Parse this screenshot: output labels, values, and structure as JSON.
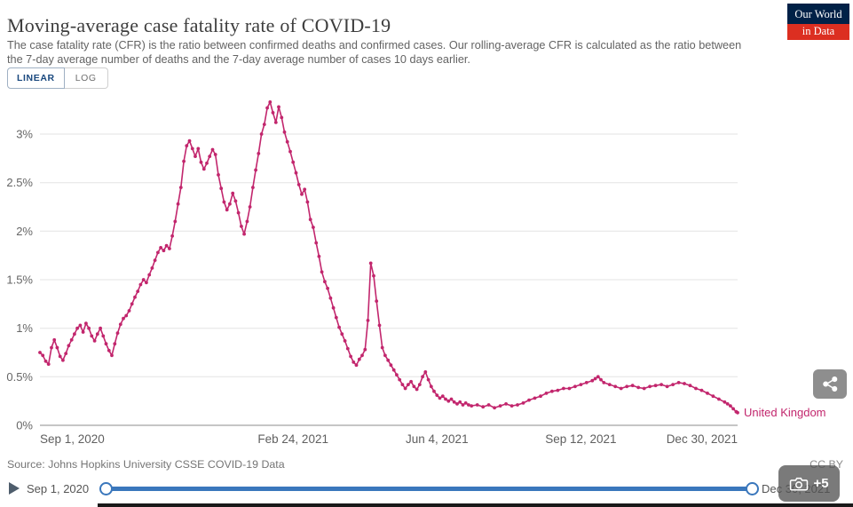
{
  "header": {
    "title": "Moving-average case fatality rate of COVID-19",
    "subtitle": "The case fatality rate (CFR) is the ratio between confirmed deaths and confirmed cases. Our rolling-average CFR is calculated as the ratio between the 7-day average number of deaths and the 7-day average number of cases 10 days earlier."
  },
  "logo": {
    "line1": "Our World",
    "line2": "in Data",
    "bg_color": "#002147",
    "accent_color": "#dc2f21"
  },
  "toggles": {
    "linear_label": "LINEAR",
    "log_label": "LOG",
    "active": "LINEAR"
  },
  "chart_data": {
    "type": "line",
    "title": "Moving-average case fatality rate of COVID-19",
    "x_unit": "days since Sep 1, 2020",
    "x_domain": [
      0,
      485
    ],
    "y_domain": [
      0,
      3
    ],
    "grid": "horizontal-only",
    "x_ticks": [
      {
        "day": 0,
        "label": "Sep 1, 2020",
        "anchor": "start"
      },
      {
        "day": 176,
        "label": "Feb 24, 2021",
        "anchor": "middle"
      },
      {
        "day": 276,
        "label": "Jun 4, 2021",
        "anchor": "middle"
      },
      {
        "day": 376,
        "label": "Sep 12, 2021",
        "anchor": "middle"
      },
      {
        "day": 485,
        "label": "Dec 30, 2021",
        "anchor": "end"
      }
    ],
    "y_ticks": [
      {
        "value": 0,
        "label": "0%"
      },
      {
        "value": 0.5,
        "label": "0.5%"
      },
      {
        "value": 1,
        "label": "1%"
      },
      {
        "value": 1.5,
        "label": "1.5%"
      },
      {
        "value": 2,
        "label": "2%"
      },
      {
        "value": 2.5,
        "label": "2.5%"
      },
      {
        "value": 3,
        "label": "3%"
      }
    ],
    "series": [
      {
        "name": "United Kingdom",
        "color": "#c2266d",
        "points": [
          [
            0,
            0.75
          ],
          [
            2,
            0.72
          ],
          [
            4,
            0.66
          ],
          [
            6,
            0.63
          ],
          [
            8,
            0.8
          ],
          [
            10,
            0.88
          ],
          [
            12,
            0.8
          ],
          [
            14,
            0.71
          ],
          [
            16,
            0.67
          ],
          [
            18,
            0.74
          ],
          [
            20,
            0.82
          ],
          [
            22,
            0.88
          ],
          [
            24,
            0.94
          ],
          [
            26,
            1.0
          ],
          [
            28,
            1.03
          ],
          [
            30,
            0.96
          ],
          [
            32,
            1.05
          ],
          [
            34,
            1.0
          ],
          [
            36,
            0.92
          ],
          [
            38,
            0.87
          ],
          [
            40,
            0.94
          ],
          [
            42,
            1.0
          ],
          [
            44,
            0.92
          ],
          [
            46,
            0.84
          ],
          [
            48,
            0.77
          ],
          [
            50,
            0.72
          ],
          [
            52,
            0.84
          ],
          [
            54,
            0.95
          ],
          [
            56,
            1.04
          ],
          [
            58,
            1.1
          ],
          [
            60,
            1.13
          ],
          [
            62,
            1.18
          ],
          [
            64,
            1.25
          ],
          [
            66,
            1.32
          ],
          [
            68,
            1.38
          ],
          [
            70,
            1.45
          ],
          [
            72,
            1.5
          ],
          [
            74,
            1.47
          ],
          [
            76,
            1.55
          ],
          [
            78,
            1.62
          ],
          [
            80,
            1.7
          ],
          [
            82,
            1.78
          ],
          [
            84,
            1.83
          ],
          [
            86,
            1.8
          ],
          [
            88,
            1.85
          ],
          [
            90,
            1.82
          ],
          [
            92,
            1.95
          ],
          [
            94,
            2.1
          ],
          [
            96,
            2.28
          ],
          [
            98,
            2.45
          ],
          [
            100,
            2.72
          ],
          [
            102,
            2.88
          ],
          [
            104,
            2.93
          ],
          [
            106,
            2.85
          ],
          [
            108,
            2.77
          ],
          [
            110,
            2.85
          ],
          [
            112,
            2.71
          ],
          [
            114,
            2.64
          ],
          [
            116,
            2.7
          ],
          [
            118,
            2.77
          ],
          [
            120,
            2.84
          ],
          [
            122,
            2.79
          ],
          [
            124,
            2.58
          ],
          [
            126,
            2.44
          ],
          [
            128,
            2.3
          ],
          [
            130,
            2.22
          ],
          [
            132,
            2.28
          ],
          [
            134,
            2.39
          ],
          [
            136,
            2.31
          ],
          [
            138,
            2.19
          ],
          [
            140,
            2.05
          ],
          [
            142,
            1.97
          ],
          [
            144,
            2.1
          ],
          [
            146,
            2.25
          ],
          [
            148,
            2.45
          ],
          [
            150,
            2.63
          ],
          [
            152,
            2.8
          ],
          [
            154,
            3.0
          ],
          [
            156,
            3.1
          ],
          [
            158,
            3.27
          ],
          [
            160,
            3.33
          ],
          [
            162,
            3.22
          ],
          [
            164,
            3.12
          ],
          [
            166,
            3.28
          ],
          [
            168,
            3.17
          ],
          [
            170,
            3.02
          ],
          [
            172,
            2.92
          ],
          [
            174,
            2.82
          ],
          [
            176,
            2.71
          ],
          [
            178,
            2.6
          ],
          [
            180,
            2.48
          ],
          [
            182,
            2.38
          ],
          [
            184,
            2.43
          ],
          [
            186,
            2.3
          ],
          [
            188,
            2.12
          ],
          [
            190,
            2.04
          ],
          [
            192,
            1.88
          ],
          [
            194,
            1.74
          ],
          [
            196,
            1.58
          ],
          [
            198,
            1.48
          ],
          [
            200,
            1.41
          ],
          [
            202,
            1.31
          ],
          [
            204,
            1.21
          ],
          [
            206,
            1.11
          ],
          [
            208,
            1.01
          ],
          [
            210,
            0.94
          ],
          [
            212,
            0.87
          ],
          [
            214,
            0.79
          ],
          [
            216,
            0.71
          ],
          [
            218,
            0.65
          ],
          [
            220,
            0.62
          ],
          [
            222,
            0.68
          ],
          [
            224,
            0.72
          ],
          [
            226,
            0.78
          ],
          [
            228,
            1.08
          ],
          [
            230,
            1.67
          ],
          [
            232,
            1.54
          ],
          [
            234,
            1.28
          ],
          [
            236,
            1.03
          ],
          [
            238,
            0.8
          ],
          [
            240,
            0.72
          ],
          [
            242,
            0.67
          ],
          [
            244,
            0.62
          ],
          [
            246,
            0.57
          ],
          [
            248,
            0.52
          ],
          [
            250,
            0.47
          ],
          [
            252,
            0.42
          ],
          [
            254,
            0.38
          ],
          [
            256,
            0.42
          ],
          [
            258,
            0.45
          ],
          [
            260,
            0.4
          ],
          [
            262,
            0.37
          ],
          [
            264,
            0.42
          ],
          [
            266,
            0.5
          ],
          [
            268,
            0.55
          ],
          [
            270,
            0.47
          ],
          [
            272,
            0.4
          ],
          [
            274,
            0.35
          ],
          [
            276,
            0.31
          ],
          [
            278,
            0.28
          ],
          [
            280,
            0.3
          ],
          [
            282,
            0.27
          ],
          [
            284,
            0.25
          ],
          [
            286,
            0.27
          ],
          [
            288,
            0.24
          ],
          [
            290,
            0.22
          ],
          [
            292,
            0.24
          ],
          [
            294,
            0.21
          ],
          [
            296,
            0.23
          ],
          [
            298,
            0.21
          ],
          [
            300,
            0.2
          ],
          [
            304,
            0.21
          ],
          [
            308,
            0.19
          ],
          [
            312,
            0.21
          ],
          [
            316,
            0.18
          ],
          [
            320,
            0.2
          ],
          [
            324,
            0.22
          ],
          [
            328,
            0.2
          ],
          [
            332,
            0.21
          ],
          [
            336,
            0.23
          ],
          [
            340,
            0.26
          ],
          [
            344,
            0.28
          ],
          [
            348,
            0.3
          ],
          [
            352,
            0.33
          ],
          [
            356,
            0.35
          ],
          [
            360,
            0.36
          ],
          [
            364,
            0.38
          ],
          [
            368,
            0.38
          ],
          [
            372,
            0.4
          ],
          [
            376,
            0.42
          ],
          [
            380,
            0.44
          ],
          [
            384,
            0.46
          ],
          [
            386,
            0.48
          ],
          [
            388,
            0.5
          ],
          [
            390,
            0.47
          ],
          [
            392,
            0.44
          ],
          [
            396,
            0.42
          ],
          [
            400,
            0.4
          ],
          [
            404,
            0.38
          ],
          [
            408,
            0.4
          ],
          [
            412,
            0.41
          ],
          [
            416,
            0.39
          ],
          [
            420,
            0.38
          ],
          [
            424,
            0.4
          ],
          [
            428,
            0.41
          ],
          [
            432,
            0.42
          ],
          [
            436,
            0.4
          ],
          [
            440,
            0.42
          ],
          [
            444,
            0.44
          ],
          [
            448,
            0.43
          ],
          [
            452,
            0.41
          ],
          [
            456,
            0.38
          ],
          [
            460,
            0.36
          ],
          [
            464,
            0.33
          ],
          [
            468,
            0.3
          ],
          [
            472,
            0.27
          ],
          [
            476,
            0.24
          ],
          [
            478,
            0.22
          ],
          [
            480,
            0.2
          ],
          [
            482,
            0.17
          ],
          [
            484,
            0.14
          ],
          [
            485,
            0.13
          ]
        ]
      }
    ],
    "legend_position": "end-of-line-label"
  },
  "footer": {
    "source": "Source: Johns Hopkins University CSSE COVID-19 Data",
    "license": "CC BY"
  },
  "timeline": {
    "start_label": "Sep 1, 2020",
    "end_label": "Dec 30, 2021",
    "track_color": "#3a77bc"
  },
  "overlay": {
    "photo_count": "+5"
  }
}
